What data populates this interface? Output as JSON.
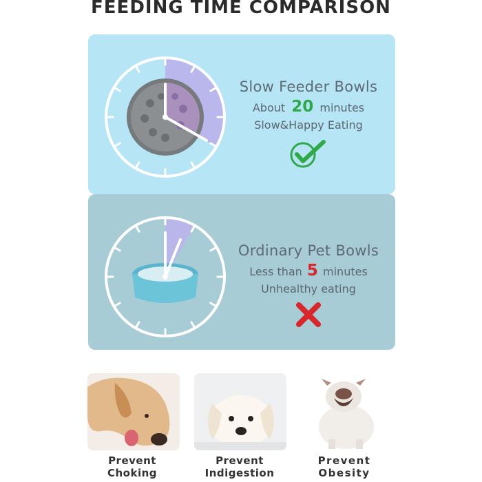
{
  "title": "FEEDING TIME COMPARISON",
  "slow": {
    "name": "Slow Feeder Bowls",
    "prefix": "About",
    "minutes_value": "20",
    "suffix": "minutes",
    "tagline": "Slow&Happy Eating",
    "mark_icon": "check-icon",
    "accent": "#2fa84a"
  },
  "ordinary": {
    "name": "Ordinary Pet Bowls",
    "prefix": "Less than",
    "minutes_value": "5",
    "suffix": "minutes",
    "tagline": "Unhealthy eating",
    "mark_icon": "cross-icon",
    "accent": "#d8262a"
  },
  "benefits": [
    {
      "line1": "Prevent",
      "line2": "Choking"
    },
    {
      "line1": "Prevent",
      "line2": "Indigestion"
    },
    {
      "line1": "Prevent",
      "line2": "Obesity"
    }
  ]
}
